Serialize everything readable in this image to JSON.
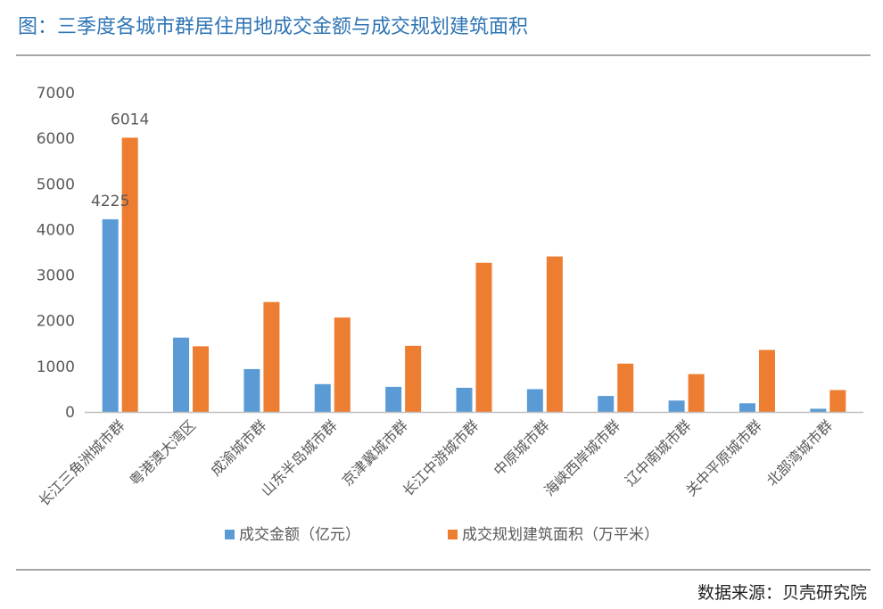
{
  "header": {
    "title": "图：三季度各城市群居住用地成交金额与成交规划建筑面积"
  },
  "footer": {
    "source": "数据来源：贝壳研究院"
  },
  "colors": {
    "title": "#2f75b5",
    "series_1": "#5b9bd5",
    "series_2": "#ed7d31",
    "axis": "#bfbfbf",
    "text": "#595959"
  },
  "chart_data": {
    "type": "bar",
    "title": "",
    "xlabel": "",
    "ylabel": "",
    "ylim": [
      0,
      7000
    ],
    "yticks": [
      0,
      1000,
      2000,
      3000,
      4000,
      5000,
      6000,
      7000
    ],
    "grid": false,
    "legend_position": "bottom",
    "categories": [
      "长江三角洲城市群",
      "粤港澳大湾区",
      "成渝城市群",
      "山东半岛城市群",
      "京津冀城市群",
      "长江中游城市群",
      "中原城市群",
      "海峡西岸城市群",
      "辽中南城市群",
      "关中平原城市群",
      "北部湾城市群"
    ],
    "series": [
      {
        "name": "成交金额（亿元）",
        "values": [
          4225,
          1630,
          940,
          610,
          550,
          530,
          500,
          350,
          250,
          190,
          70
        ],
        "data_labels": [
          "4225",
          "",
          "",
          "",
          "",
          "",
          "",
          "",
          "",
          "",
          ""
        ]
      },
      {
        "name": "成交规划建筑面积（万平米）",
        "values": [
          6014,
          1440,
          2410,
          2070,
          1450,
          3270,
          3410,
          1060,
          830,
          1360,
          480
        ],
        "data_labels": [
          "6014",
          "",
          "",
          "",
          "",
          "",
          "",
          "",
          "",
          "",
          ""
        ]
      }
    ]
  }
}
